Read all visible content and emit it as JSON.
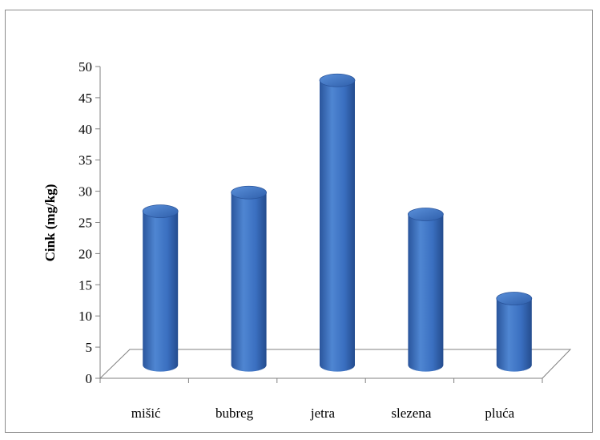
{
  "chart_data": {
    "type": "bar",
    "style": "3d-cylinder",
    "categories": [
      "mišić",
      "bubreg",
      "jetra",
      "slezena",
      "pluća"
    ],
    "values": [
      25.5,
      28.5,
      46.5,
      25,
      11.5
    ],
    "title": "",
    "xlabel": "",
    "ylabel": "Cink (mg/kg)",
    "ylim": [
      0,
      50
    ],
    "yticks": [
      0,
      5,
      10,
      15,
      20,
      25,
      30,
      35,
      40,
      45,
      50
    ],
    "grid": false,
    "legend": "none",
    "bar_color": "#3a6fc0"
  }
}
